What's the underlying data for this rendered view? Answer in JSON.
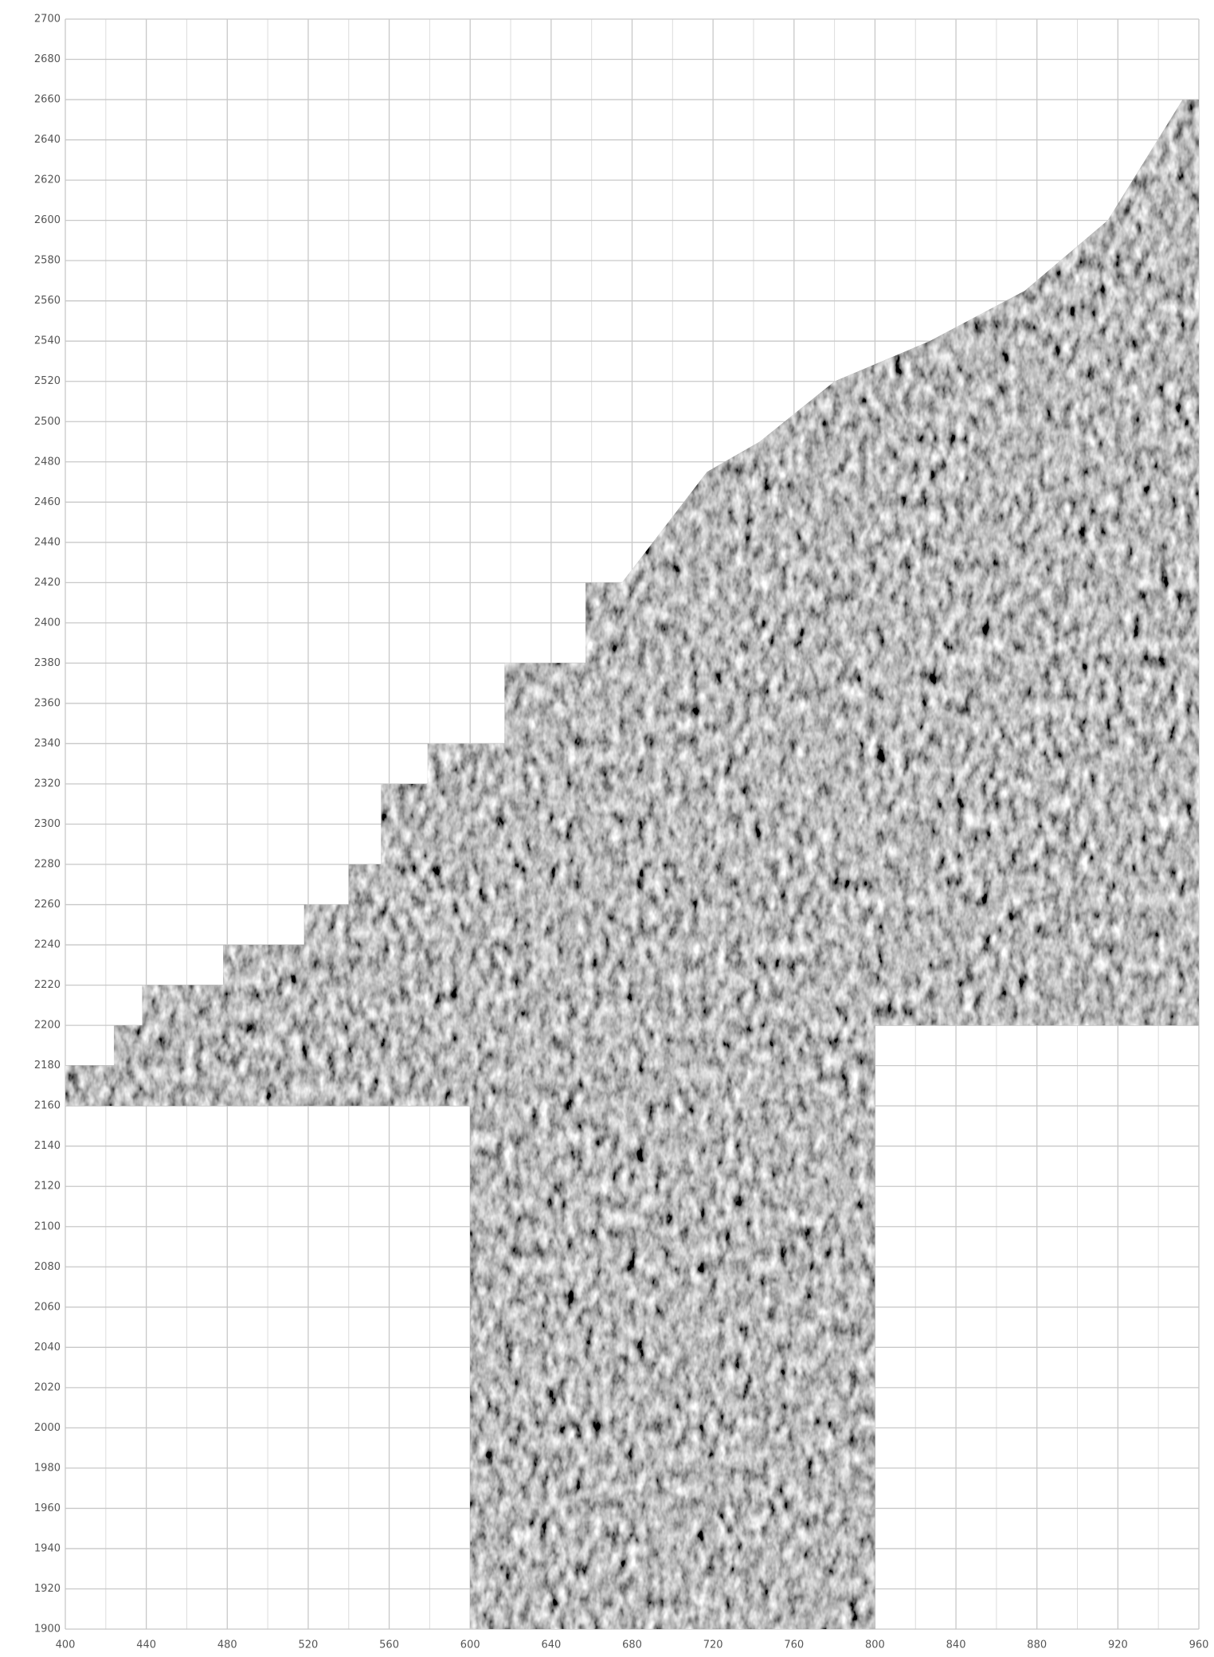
{
  "chart_data": {
    "type": "survey",
    "xlim": [
      400,
      960
    ],
    "ylim": [
      1900,
      2700
    ],
    "xticks": [
      400,
      440,
      480,
      520,
      560,
      600,
      640,
      680,
      720,
      760,
      800,
      840,
      880,
      920,
      960
    ],
    "yticks": [
      1900,
      1920,
      1940,
      1960,
      1980,
      2000,
      2020,
      2040,
      2060,
      2080,
      2100,
      2120,
      2140,
      2160,
      2180,
      2200,
      2220,
      2240,
      2260,
      2280,
      2300,
      2320,
      2340,
      2360,
      2380,
      2400,
      2420,
      2440,
      2460,
      2480,
      2500,
      2520,
      2540,
      2560,
      2580,
      2600,
      2620,
      2640,
      2660,
      2680,
      2700
    ],
    "grid": true,
    "x": [
      600,
      800,
      800,
      960,
      960,
      952,
      915,
      874,
      827,
      780,
      743,
      717,
      675,
      657,
      657,
      617,
      617,
      579,
      579,
      556,
      556,
      540,
      540,
      518,
      518,
      478,
      478,
      438,
      438,
      424,
      424,
      400,
      400,
      600
    ],
    "y": [
      1900,
      1900,
      2200,
      2200,
      2660,
      2660,
      2600,
      2565,
      2540,
      2520,
      2490,
      2475,
      2420,
      2420,
      2380,
      2380,
      2340,
      2340,
      2320,
      2320,
      2280,
      2280,
      2260,
      2260,
      2240,
      2240,
      2220,
      2220,
      2200,
      2200,
      2180,
      2180,
      2160,
      2160
    ]
  }
}
